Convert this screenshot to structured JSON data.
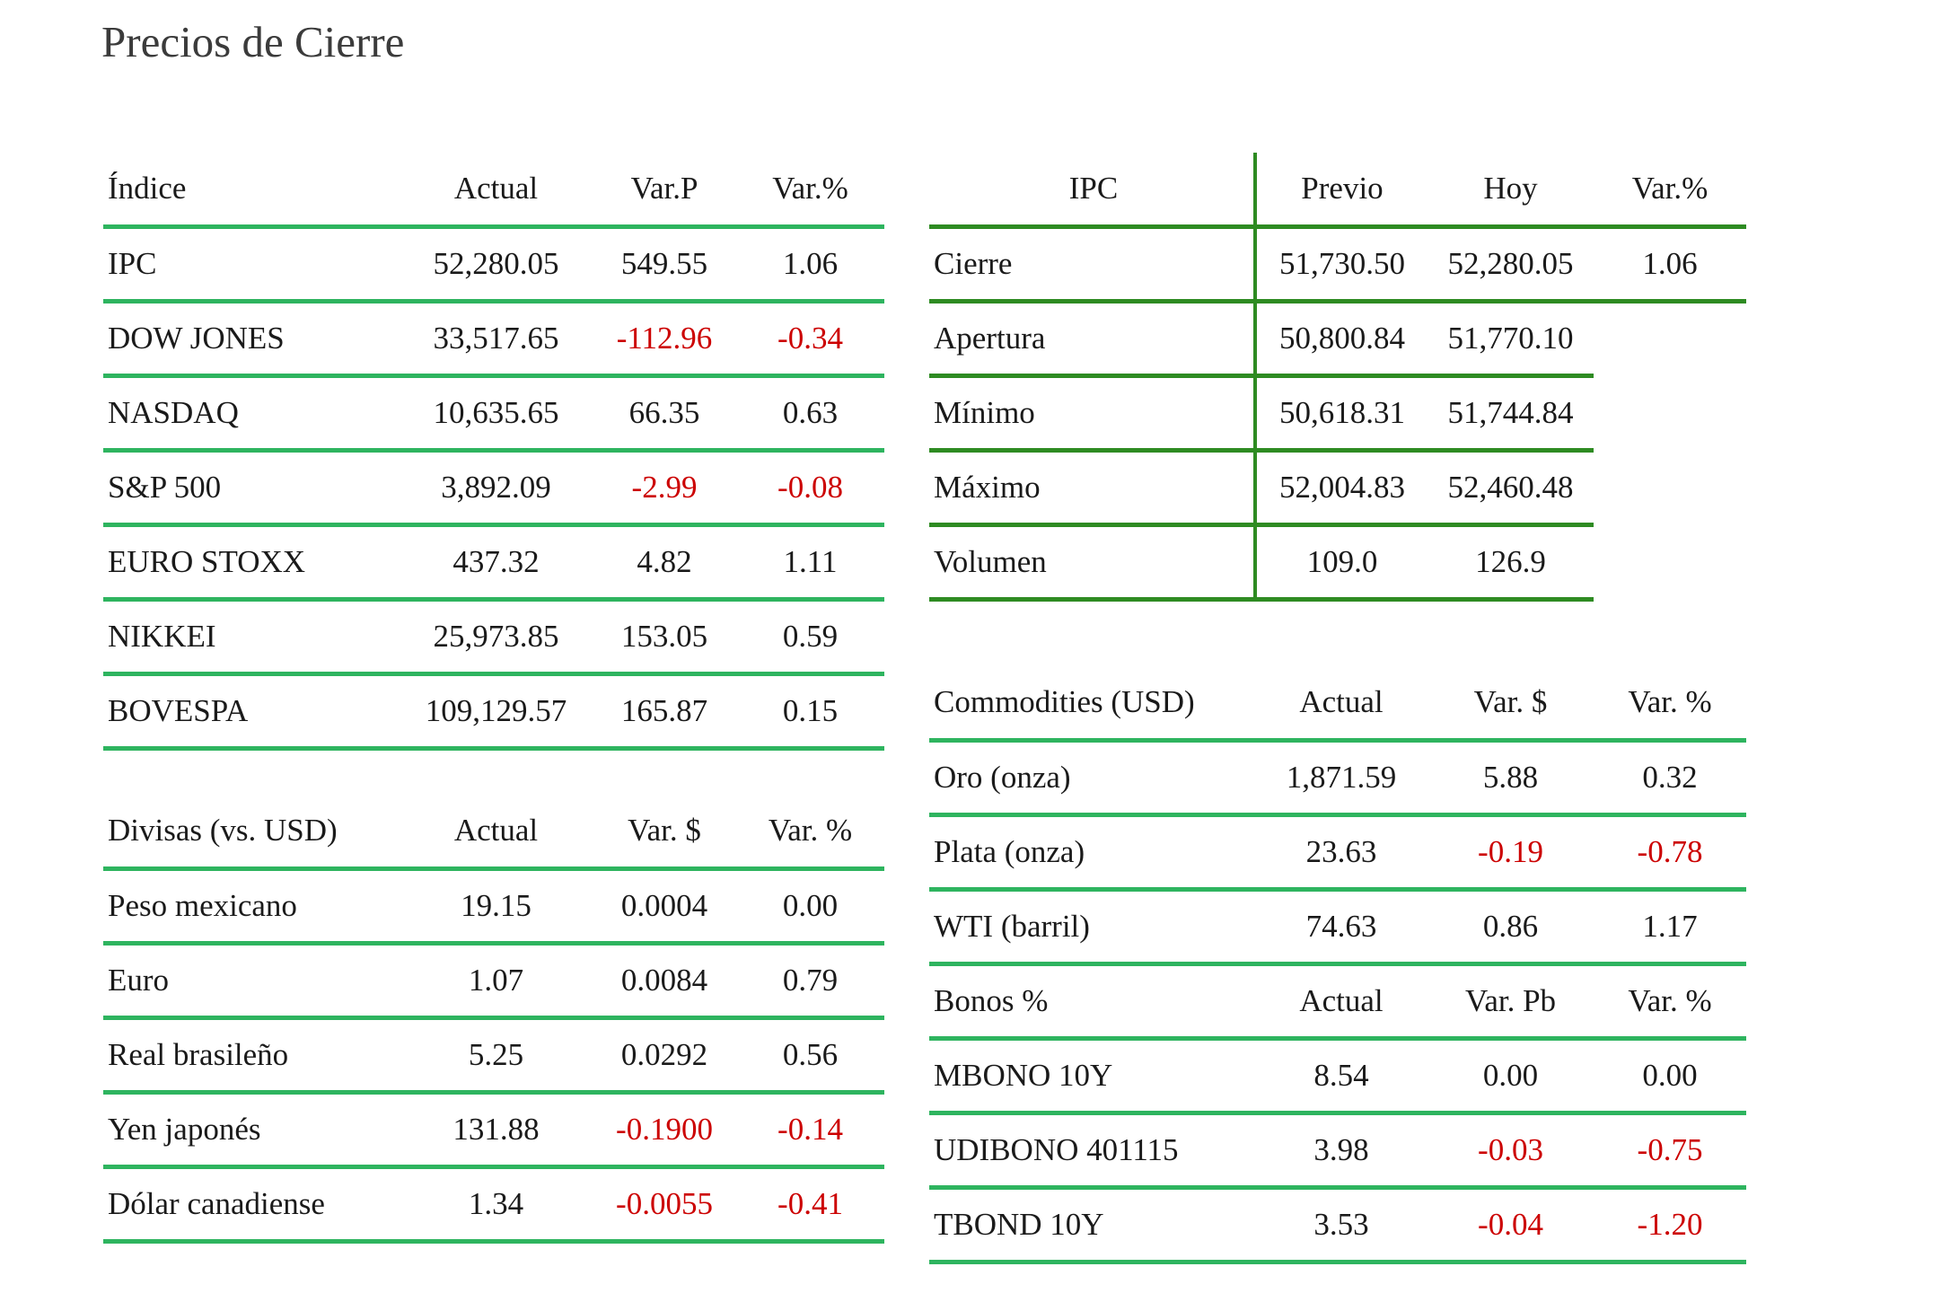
{
  "title": "Precios de Cierre",
  "colors": {
    "light_green_line": "#2eb45f",
    "dark_green_line": "#2e8b22",
    "negative": "#cc0000",
    "text": "#1a1a1a",
    "title_text": "#3b3b3b"
  },
  "tables": {
    "indices": {
      "headers": [
        "Índice",
        "Actual",
        "Var.P",
        "Var.%"
      ],
      "rows": [
        [
          "IPC",
          "52,280.05",
          "549.55",
          "1.06"
        ],
        [
          "DOW JONES",
          "33,517.65",
          "-112.96",
          "-0.34"
        ],
        [
          "NASDAQ",
          "10,635.65",
          "66.35",
          "0.63"
        ],
        [
          "S&P 500",
          "3,892.09",
          "-2.99",
          "-0.08"
        ],
        [
          "EURO STOXX",
          "437.32",
          "4.82",
          "1.11"
        ],
        [
          "NIKKEI",
          "25,973.85",
          "153.05",
          "0.59"
        ],
        [
          "BOVESPA",
          "109,129.57",
          "165.87",
          "0.15"
        ]
      ]
    },
    "ipc_detail": {
      "headers": [
        "IPC",
        "Previo",
        "Hoy",
        "Var.%"
      ],
      "rows": [
        [
          "Cierre",
          "51,730.50",
          "52,280.05",
          "1.06"
        ],
        [
          "Apertura",
          "50,800.84",
          "51,770.10",
          ""
        ],
        [
          "Mínimo",
          "50,618.31",
          "51,744.84",
          ""
        ],
        [
          "Máximo",
          "52,004.83",
          "52,460.48",
          ""
        ],
        [
          "Volumen",
          "109.0",
          "126.9",
          ""
        ]
      ]
    },
    "divisas": {
      "headers": [
        "Divisas (vs. USD)",
        "Actual",
        "Var. $",
        "Var. %"
      ],
      "rows": [
        [
          "Peso mexicano",
          "19.15",
          "0.0004",
          "0.00"
        ],
        [
          "Euro",
          "1.07",
          "0.0084",
          "0.79"
        ],
        [
          "Real brasileño",
          "5.25",
          "0.0292",
          "0.56"
        ],
        [
          "Yen japonés",
          "131.88",
          "-0.1900",
          "-0.14"
        ],
        [
          "Dólar canadiense",
          "1.34",
          "-0.0055",
          "-0.41"
        ]
      ]
    },
    "commodities": {
      "headers": [
        "Commodities (USD)",
        "Actual",
        "Var. $",
        "Var. %"
      ],
      "rows": [
        [
          "Oro (onza)",
          "1,871.59",
          "5.88",
          "0.32"
        ],
        [
          "Plata (onza)",
          "23.63",
          "-0.19",
          "-0.78"
        ],
        [
          "WTI (barril)",
          "74.63",
          "0.86",
          "1.17"
        ]
      ],
      "bonos_headers": [
        "Bonos %",
        "Actual",
        "Var. Pb",
        "Var. %"
      ],
      "bonos_rows": [
        [
          "MBONO 10Y",
          "8.54",
          "0.00",
          "0.00"
        ],
        [
          "UDIBONO 401115",
          "3.98",
          "-0.03",
          "-0.75"
        ],
        [
          "TBOND 10Y",
          "3.53",
          "-0.04",
          "-1.20"
        ]
      ]
    }
  }
}
